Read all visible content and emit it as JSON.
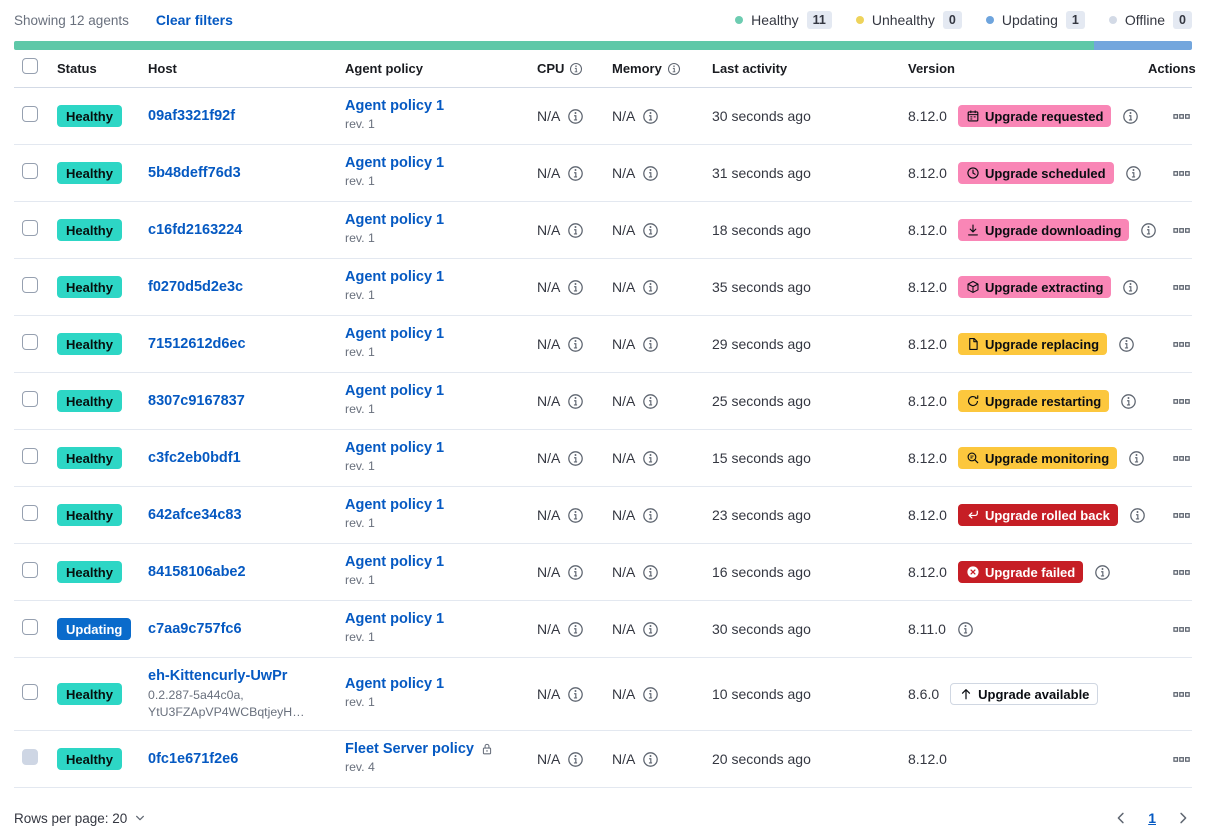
{
  "toolbar": {
    "showing": "Showing 12 agents",
    "clear_filters": "Clear filters",
    "legend": [
      {
        "label": "Healthy",
        "count": "11",
        "color": "#6dccb1"
      },
      {
        "label": "Unhealthy",
        "count": "0",
        "color": "#eed35b"
      },
      {
        "label": "Updating",
        "count": "1",
        "color": "#6ea4dd"
      },
      {
        "label": "Offline",
        "count": "0",
        "color": "#d3dae6"
      }
    ]
  },
  "status_bar": {
    "segments": [
      {
        "name": "healthy",
        "color": "#5ec8a8",
        "percent": 91.67
      },
      {
        "name": "updating",
        "color": "#73a6dd",
        "percent": 8.33
      }
    ]
  },
  "table": {
    "headers": {
      "status": "Status",
      "host": "Host",
      "policy": "Agent policy",
      "cpu": "CPU",
      "memory": "Memory",
      "last_activity": "Last activity",
      "version": "Version",
      "actions": "Actions"
    },
    "rows": [
      {
        "status": "Healthy",
        "status_variant": "healthy",
        "host": "09af3321f92f",
        "policy": "Agent policy 1",
        "policy_rev": "rev. 1",
        "policy_locked": false,
        "cpu": "N/A",
        "memory": "N/A",
        "last_activity": "30 seconds ago",
        "version": "8.12.0",
        "upgrade_badge": {
          "label": "Upgrade requested",
          "icon": "calendar-icon",
          "variant": "accent"
        },
        "version_info": true,
        "checkbox_disabled": false
      },
      {
        "status": "Healthy",
        "status_variant": "healthy",
        "host": "5b48deff76d3",
        "policy": "Agent policy 1",
        "policy_rev": "rev. 1",
        "policy_locked": false,
        "cpu": "N/A",
        "memory": "N/A",
        "last_activity": "31 seconds ago",
        "version": "8.12.0",
        "upgrade_badge": {
          "label": "Upgrade scheduled",
          "icon": "clock-icon",
          "variant": "accent"
        },
        "version_info": true,
        "checkbox_disabled": false
      },
      {
        "status": "Healthy",
        "status_variant": "healthy",
        "host": "c16fd2163224",
        "policy": "Agent policy 1",
        "policy_rev": "rev. 1",
        "policy_locked": false,
        "cpu": "N/A",
        "memory": "N/A",
        "last_activity": "18 seconds ago",
        "version": "8.12.0",
        "upgrade_badge": {
          "label": "Upgrade downloading",
          "icon": "download-icon",
          "variant": "accent"
        },
        "version_info": true,
        "checkbox_disabled": false
      },
      {
        "status": "Healthy",
        "status_variant": "healthy",
        "host": "f0270d5d2e3c",
        "policy": "Agent policy 1",
        "policy_rev": "rev. 1",
        "policy_locked": false,
        "cpu": "N/A",
        "memory": "N/A",
        "last_activity": "35 seconds ago",
        "version": "8.12.0",
        "upgrade_badge": {
          "label": "Upgrade extracting",
          "icon": "package-icon",
          "variant": "accent"
        },
        "version_info": true,
        "checkbox_disabled": false
      },
      {
        "status": "Healthy",
        "status_variant": "healthy",
        "host": "71512612d6ec",
        "policy": "Agent policy 1",
        "policy_rev": "rev. 1",
        "policy_locked": false,
        "cpu": "N/A",
        "memory": "N/A",
        "last_activity": "29 seconds ago",
        "version": "8.12.0",
        "upgrade_badge": {
          "label": "Upgrade replacing",
          "icon": "copy-icon",
          "variant": "warning"
        },
        "version_info": true,
        "checkbox_disabled": false
      },
      {
        "status": "Healthy",
        "status_variant": "healthy",
        "host": "8307c9167837",
        "policy": "Agent policy 1",
        "policy_rev": "rev. 1",
        "policy_locked": false,
        "cpu": "N/A",
        "memory": "N/A",
        "last_activity": "25 seconds ago",
        "version": "8.12.0",
        "upgrade_badge": {
          "label": "Upgrade restarting",
          "icon": "refresh-icon",
          "variant": "warning"
        },
        "version_info": true,
        "checkbox_disabled": false
      },
      {
        "status": "Healthy",
        "status_variant": "healthy",
        "host": "c3fc2eb0bdf1",
        "policy": "Agent policy 1",
        "policy_rev": "rev. 1",
        "policy_locked": false,
        "cpu": "N/A",
        "memory": "N/A",
        "last_activity": "15 seconds ago",
        "version": "8.12.0",
        "upgrade_badge": {
          "label": "Upgrade monitoring",
          "icon": "inspect-icon",
          "variant": "warning"
        },
        "version_info": true,
        "checkbox_disabled": false
      },
      {
        "status": "Healthy",
        "status_variant": "healthy",
        "host": "642afce34c83",
        "policy": "Agent policy 1",
        "policy_rev": "rev. 1",
        "policy_locked": false,
        "cpu": "N/A",
        "memory": "N/A",
        "last_activity": "23 seconds ago",
        "version": "8.12.0",
        "upgrade_badge": {
          "label": "Upgrade rolled back",
          "icon": "return-icon",
          "variant": "danger"
        },
        "version_info": true,
        "checkbox_disabled": false
      },
      {
        "status": "Healthy",
        "status_variant": "healthy",
        "host": "84158106abe2",
        "policy": "Agent policy 1",
        "policy_rev": "rev. 1",
        "policy_locked": false,
        "cpu": "N/A",
        "memory": "N/A",
        "last_activity": "16 seconds ago",
        "version": "8.12.0",
        "upgrade_badge": {
          "label": "Upgrade failed",
          "icon": "error-icon",
          "variant": "danger"
        },
        "version_info": true,
        "checkbox_disabled": false
      },
      {
        "status": "Updating",
        "status_variant": "updating",
        "host": "c7aa9c757fc6",
        "policy": "Agent policy 1",
        "policy_rev": "rev. 1",
        "policy_locked": false,
        "cpu": "N/A",
        "memory": "N/A",
        "last_activity": "30 seconds ago",
        "version": "8.11.0",
        "upgrade_badge": null,
        "version_info": true,
        "checkbox_disabled": false
      },
      {
        "status": "Healthy",
        "status_variant": "healthy",
        "host": "eh-Kittencurly-UwPr",
        "host_sub": [
          "0.2.287-5a44c0a,",
          "YtU3FZApVP4WCBqtjeyH…"
        ],
        "tall": true,
        "policy": "Agent policy 1",
        "policy_rev": "rev. 1",
        "policy_locked": false,
        "cpu": "N/A",
        "memory": "N/A",
        "last_activity": "10 seconds ago",
        "version": "8.6.0",
        "upgrade_badge": {
          "label": "Upgrade available",
          "icon": "arrow-up-icon",
          "variant": "hollow"
        },
        "version_info": false,
        "checkbox_disabled": false
      },
      {
        "status": "Healthy",
        "status_variant": "healthy",
        "host": "0fc1e671f2e6",
        "policy": "Fleet Server policy",
        "policy_rev": "rev. 4",
        "policy_locked": true,
        "cpu": "N/A",
        "memory": "N/A",
        "last_activity": "20 seconds ago",
        "version": "8.12.0",
        "upgrade_badge": null,
        "version_info": false,
        "checkbox_disabled": true
      }
    ]
  },
  "footer": {
    "rows_per_page": "Rows per page: 20",
    "page": "1"
  },
  "colors": {
    "link": "#0559c2",
    "healthy_badge": "#2dd6c5",
    "updating_badge": "#0a6bcb",
    "accent_badge": "#f986b6",
    "warning_badge": "#fcc73d",
    "danger_badge": "#c61e25"
  }
}
